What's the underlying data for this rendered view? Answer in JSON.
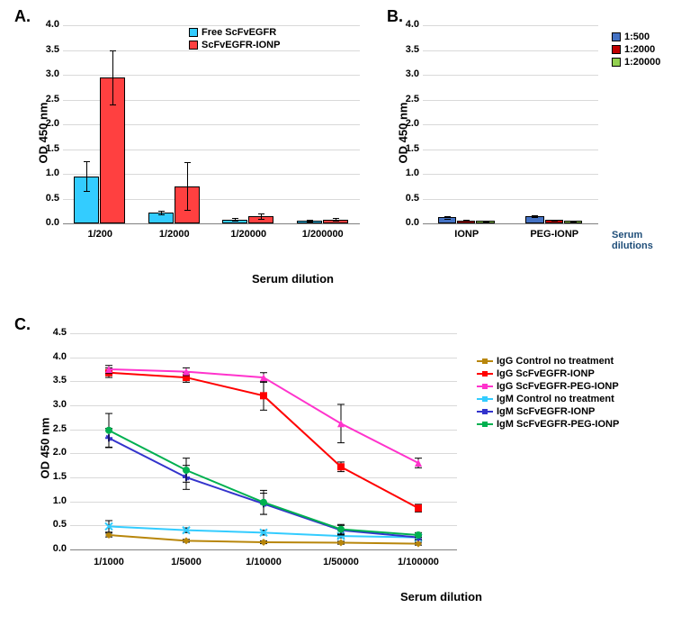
{
  "panelA": {
    "label": "A.",
    "type": "bar",
    "ylabel": "OD 450 nm",
    "xlabel": "Serum dilution",
    "ylim": [
      0,
      4.0
    ],
    "ytick_step": 0.5,
    "categories": [
      "1/200",
      "1/2000",
      "1/20000",
      "1/200000"
    ],
    "series": [
      {
        "name": "Free ScFvEGFR",
        "color": "#33ccff",
        "values": [
          0.95,
          0.22,
          0.08,
          0.05
        ],
        "errors": [
          0.3,
          0.04,
          0.03,
          0.02
        ]
      },
      {
        "name": "ScFvEGFR-IONP",
        "color": "#ff4040",
        "values": [
          2.95,
          0.75,
          0.15,
          0.08
        ],
        "errors": [
          0.55,
          0.48,
          0.05,
          0.03
        ]
      }
    ],
    "grid_color": "#d9d9d9",
    "background_color": "#ffffff",
    "label_fontsize": 13,
    "tick_fontsize": 11,
    "bar_width": 0.35
  },
  "panelB": {
    "label": "B.",
    "type": "bar",
    "ylabel": "OD 450 nm",
    "xlabel_right": "Serum dilutions",
    "ylim": [
      0,
      4.0
    ],
    "ytick_step": 0.5,
    "categories": [
      "IONP",
      "PEG-IONP"
    ],
    "series": [
      {
        "name": "1:500",
        "color": "#4472c4",
        "values": [
          0.12,
          0.14
        ],
        "errors": [
          0.02,
          0.02
        ]
      },
      {
        "name": "1:2000",
        "color": "#c00000",
        "values": [
          0.06,
          0.07
        ],
        "errors": [
          0.01,
          0.01
        ]
      },
      {
        "name": "1:20000",
        "color": "#92d050",
        "values": [
          0.05,
          0.05
        ],
        "errors": [
          0.01,
          0.01
        ]
      }
    ],
    "grid_color": "#d9d9d9",
    "background_color": "#ffffff",
    "label_fontsize": 13,
    "tick_fontsize": 11,
    "bar_width": 0.22
  },
  "panelC": {
    "label": "C.",
    "type": "line",
    "ylabel": "OD 450 nm",
    "xlabel": "Serum dilution",
    "ylim": [
      0,
      4.5
    ],
    "ytick_step": 0.5,
    "categories": [
      "1/1000",
      "1/5000",
      "1/10000",
      "1/50000",
      "1/100000"
    ],
    "series": [
      {
        "name": "IgG Control no treatment",
        "color": "#b8860b",
        "marker": "diamond",
        "values": [
          0.3,
          0.18,
          0.15,
          0.14,
          0.12
        ],
        "errors": [
          0.04,
          0.03,
          0.03,
          0.03,
          0.03
        ]
      },
      {
        "name": "IgG ScFvEGFR-IONP",
        "color": "#ff0000",
        "marker": "square",
        "values": [
          3.68,
          3.58,
          3.2,
          1.72,
          0.86
        ],
        "errors": [
          0.1,
          0.1,
          0.3,
          0.1,
          0.08
        ]
      },
      {
        "name": "IgG ScFvEGFR-PEG-IONP",
        "color": "#ff33cc",
        "marker": "triangle",
        "values": [
          3.75,
          3.7,
          3.58,
          2.62,
          1.8
        ],
        "errors": [
          0.08,
          0.08,
          0.1,
          0.4,
          0.1
        ]
      },
      {
        "name": "IgM Control no treatment",
        "color": "#33ccff",
        "marker": "x",
        "values": [
          0.48,
          0.4,
          0.35,
          0.28,
          0.25
        ],
        "errors": [
          0.12,
          0.05,
          0.05,
          0.04,
          0.04
        ]
      },
      {
        "name": "IgM ScFvEGFR-IONP",
        "color": "#3333cc",
        "marker": "star",
        "values": [
          2.32,
          1.5,
          0.95,
          0.4,
          0.25
        ],
        "errors": [
          0.2,
          0.25,
          0.22,
          0.1,
          0.05
        ]
      },
      {
        "name": "IgM ScFvEGFR-PEG-IONP",
        "color": "#00b050",
        "marker": "circle",
        "values": [
          2.48,
          1.65,
          0.98,
          0.42,
          0.3
        ],
        "errors": [
          0.35,
          0.25,
          0.25,
          0.1,
          0.05
        ]
      }
    ],
    "grid_color": "#d9d9d9",
    "background_color": "#ffffff",
    "label_fontsize": 13,
    "tick_fontsize": 11,
    "line_width": 2
  }
}
